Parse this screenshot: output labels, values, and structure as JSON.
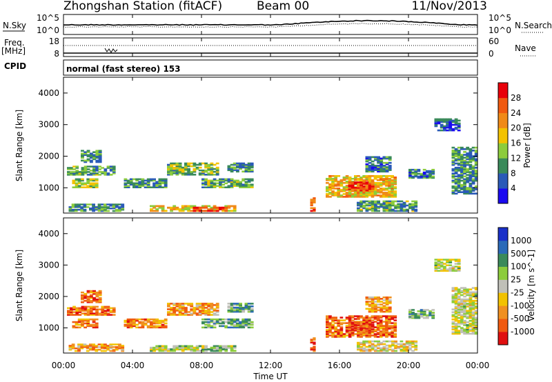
{
  "header": {
    "title": "Zhongshan Station (fitACF)",
    "beam": "Beam 00",
    "date": "11/Nov/2013"
  },
  "noise_panel": {
    "left_label": "N.Sky",
    "right_label": "N.Search",
    "left_ticks": [
      "10^5",
      "10^0"
    ],
    "right_ticks": [
      "10^5",
      "10^0"
    ]
  },
  "freq_panel": {
    "left_label_top": "Freq.",
    "left_label_unit": "[MHz]",
    "right_label": "Nave",
    "left_ticks": [
      "18",
      "8"
    ],
    "right_ticks": [
      "60",
      "0"
    ]
  },
  "cpid": {
    "label": "CPID",
    "mode_text": "normal (fast stereo) 153"
  },
  "colors": {
    "power_scale": [
      "#1a0af0",
      "#2a5ab8",
      "#3a8a5a",
      "#8ccc3c",
      "#f2c200",
      "#f08a18",
      "#f05a10",
      "#e8000a"
    ],
    "velocity_scale": [
      "#e01010",
      "#f05a10",
      "#f09020",
      "#f2c200",
      "#c0c0b8",
      "#8ccc3c",
      "#3a8a5a",
      "#2a6ab8",
      "#1a30c8"
    ]
  },
  "chart_data": [
    {
      "type": "heatmap",
      "title": "",
      "xlabel": "",
      "ylabel": "Slant Range [km]",
      "x_ticks": [
        "00:00",
        "04:00",
        "08:00",
        "12:00",
        "16:00",
        "20:00",
        "00:00"
      ],
      "y_ticks": [
        "1000",
        "2000",
        "3000",
        "4000"
      ],
      "ylim": [
        200,
        4500
      ],
      "colorbar_label": "Power [dB]",
      "colorbar_ticks": [
        "4",
        "8",
        "12",
        "16",
        "20",
        "24",
        "28"
      ],
      "clim": [
        0,
        32
      ],
      "regions": [
        {
          "t0": 0.3,
          "t1": 3.5,
          "r0": 250,
          "r1": 500,
          "level": 0.3
        },
        {
          "t0": 0.5,
          "t1": 2.0,
          "r0": 1000,
          "r1": 1300,
          "level": 0.45
        },
        {
          "t0": 0.2,
          "t1": 3.0,
          "r0": 1400,
          "r1": 1700,
          "level": 0.35
        },
        {
          "t0": 1.0,
          "t1": 2.2,
          "r0": 1800,
          "r1": 2200,
          "level": 0.3
        },
        {
          "t0": 3.5,
          "t1": 6.0,
          "r0": 1000,
          "r1": 1300,
          "level": 0.3
        },
        {
          "t0": 5.0,
          "t1": 10.0,
          "r0": 250,
          "r1": 450,
          "level": 0.55
        },
        {
          "t0": 7.5,
          "t1": 9.5,
          "r0": 250,
          "r1": 400,
          "level": 0.9
        },
        {
          "t0": 6.0,
          "t1": 9.0,
          "r0": 1400,
          "r1": 1800,
          "level": 0.4
        },
        {
          "t0": 8.0,
          "t1": 11.0,
          "r0": 1000,
          "r1": 1300,
          "level": 0.35
        },
        {
          "t0": 9.5,
          "t1": 11.0,
          "r0": 1500,
          "r1": 1800,
          "level": 0.3
        },
        {
          "t0": 15.2,
          "t1": 19.3,
          "r0": 700,
          "r1": 1400,
          "level": 0.6
        },
        {
          "t0": 16.5,
          "t1": 18.0,
          "r0": 900,
          "r1": 1200,
          "level": 0.85
        },
        {
          "t0": 17.0,
          "t1": 20.5,
          "r0": 250,
          "r1": 600,
          "level": 0.35
        },
        {
          "t0": 17.5,
          "t1": 19.0,
          "r0": 1500,
          "r1": 2000,
          "level": 0.25
        },
        {
          "t0": 20.0,
          "t1": 21.5,
          "r0": 1300,
          "r1": 1600,
          "level": 0.25
        },
        {
          "t0": 22.5,
          "t1": 24.0,
          "r0": 800,
          "r1": 2300,
          "level": 0.3
        },
        {
          "t0": 21.5,
          "t1": 23.0,
          "r0": 2800,
          "r1": 3200,
          "level": 0.2
        },
        {
          "t0": 14.3,
          "t1": 14.6,
          "r0": 250,
          "r1": 700,
          "level": 0.8
        }
      ]
    },
    {
      "type": "heatmap",
      "title": "",
      "xlabel": "Time UT",
      "ylabel": "Slant Range [km]",
      "x_ticks": [
        "00:00",
        "04:00",
        "08:00",
        "12:00",
        "16:00",
        "20:00",
        "00:00"
      ],
      "y_ticks": [
        "1000",
        "2000",
        "3000",
        "4000"
      ],
      "ylim": [
        200,
        4500
      ],
      "colorbar_label": "Velocity [m s^-1]",
      "colorbar_ticks": [
        "1000",
        "500",
        "100",
        "25",
        "-25",
        "-100",
        "-500",
        "-1000"
      ],
      "clim": [
        -1000,
        1000
      ],
      "regions": [
        {
          "t0": 0.3,
          "t1": 3.5,
          "r0": 250,
          "r1": 500,
          "level": 0.3
        },
        {
          "t0": 0.5,
          "t1": 2.0,
          "r0": 1000,
          "r1": 1300,
          "level": 0.25
        },
        {
          "t0": 0.2,
          "t1": 3.0,
          "r0": 1400,
          "r1": 1700,
          "level": 0.2
        },
        {
          "t0": 1.0,
          "t1": 2.2,
          "r0": 1800,
          "r1": 2200,
          "level": 0.2
        },
        {
          "t0": 3.5,
          "t1": 6.0,
          "r0": 1000,
          "r1": 1300,
          "level": 0.25
        },
        {
          "t0": 5.0,
          "t1": 10.0,
          "r0": 250,
          "r1": 450,
          "level": 0.55
        },
        {
          "t0": 7.5,
          "t1": 9.5,
          "r0": 250,
          "r1": 400,
          "level": 0.6
        },
        {
          "t0": 6.0,
          "t1": 9.0,
          "r0": 1400,
          "r1": 1800,
          "level": 0.3
        },
        {
          "t0": 8.0,
          "t1": 11.0,
          "r0": 1000,
          "r1": 1300,
          "level": 0.7
        },
        {
          "t0": 9.5,
          "t1": 11.0,
          "r0": 1500,
          "r1": 1800,
          "level": 0.65
        },
        {
          "t0": 15.2,
          "t1": 19.3,
          "r0": 700,
          "r1": 1400,
          "level": 0.2
        },
        {
          "t0": 16.5,
          "t1": 18.0,
          "r0": 900,
          "r1": 1200,
          "level": 0.15
        },
        {
          "t0": 17.0,
          "t1": 20.5,
          "r0": 250,
          "r1": 600,
          "level": 0.45
        },
        {
          "t0": 17.5,
          "t1": 19.0,
          "r0": 1500,
          "r1": 2000,
          "level": 0.3
        },
        {
          "t0": 20.0,
          "t1": 21.5,
          "r0": 1300,
          "r1": 1600,
          "level": 0.65
        },
        {
          "t0": 22.5,
          "t1": 24.0,
          "r0": 800,
          "r1": 2300,
          "level": 0.5
        },
        {
          "t0": 21.5,
          "t1": 23.0,
          "r0": 2800,
          "r1": 3200,
          "level": 0.5
        },
        {
          "t0": 14.3,
          "t1": 14.6,
          "r0": 250,
          "r1": 700,
          "level": 0.2
        }
      ]
    }
  ]
}
